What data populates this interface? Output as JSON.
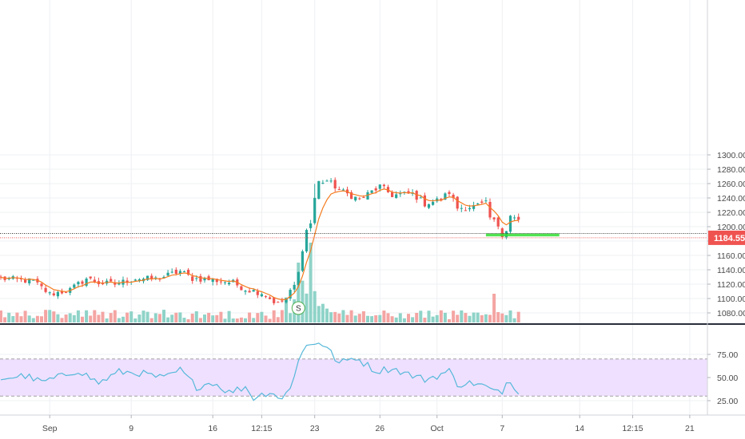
{
  "colors": {
    "up": "#26a69a",
    "down": "#ef5350",
    "vol_up": "#8fd3c8",
    "vol_down": "#f4a5a3",
    "ma": "#f57c1f",
    "rsi": "#56b8d9",
    "rsi_band": "#efe0ff",
    "support_zone": "#33dd33",
    "price_line": "#ef5350",
    "level_line": "#333333",
    "grid": "#eef0f3",
    "axis_text": "#4a4a4a"
  },
  "chart_data": {
    "type": "candlestick",
    "price_axis": {
      "ylim": [
        1065,
        1305
      ],
      "ticks": [
        "1300.00",
        "1280.00",
        "1260.00",
        "1240.00",
        "1220.00",
        "1200.00",
        "1180.00",
        "1160.00",
        "1140.00",
        "1120.00",
        "1100.00",
        "1080.00"
      ],
      "tick_values": [
        1300,
        1280,
        1260,
        1240,
        1220,
        1200,
        1180,
        1160,
        1140,
        1120,
        1100,
        1080
      ]
    },
    "last_price": {
      "label": "1184.55",
      "value": 1184.55
    },
    "horizontal_level": 1190.5,
    "support_zone": {
      "low": 1186.5,
      "high": 1190.5,
      "from_bar": 119,
      "to_bar": 137
    },
    "rsi_axis": {
      "ylim": [
        20,
        95
      ],
      "ticks": [
        "75.00",
        "50.00",
        "25.00"
      ],
      "tick_values": [
        75,
        50,
        25
      ],
      "band": [
        30,
        70
      ]
    },
    "x_axis": {
      "bar_count": 165,
      "labels": [
        {
          "text": "Sep",
          "bar": 12
        },
        {
          "text": "9",
          "bar": 32
        },
        {
          "text": "16",
          "bar": 52
        },
        {
          "text": "12:15",
          "bar": 64
        },
        {
          "text": "23",
          "bar": 77
        },
        {
          "text": "26",
          "bar": 93
        },
        {
          "text": "Oct",
          "bar": 107
        },
        {
          "text": "7",
          "bar": 123
        },
        {
          "text": "14",
          "bar": 142
        },
        {
          "text": "12:15",
          "bar": 155
        },
        {
          "text": "21",
          "bar": 169
        }
      ]
    },
    "marker": {
      "label": "S",
      "bar": 73
    },
    "anchors": [
      [
        0,
        1128
      ],
      [
        8,
        1124
      ],
      [
        12,
        1106
      ],
      [
        17,
        1112
      ],
      [
        21,
        1128
      ],
      [
        24,
        1122
      ],
      [
        28,
        1120
      ],
      [
        33,
        1128
      ],
      [
        38,
        1127
      ],
      [
        44,
        1138
      ],
      [
        47,
        1128
      ],
      [
        52,
        1126
      ],
      [
        57,
        1122
      ],
      [
        60,
        1113
      ],
      [
        64,
        1108
      ],
      [
        68,
        1092
      ],
      [
        70,
        1100
      ],
      [
        72,
        1118
      ],
      [
        73,
        1135
      ],
      [
        74,
        1170
      ],
      [
        75,
        1195
      ],
      [
        76,
        1205
      ],
      [
        77,
        1240
      ],
      [
        78,
        1262
      ],
      [
        80,
        1264
      ],
      [
        84,
        1248
      ],
      [
        88,
        1238
      ],
      [
        93,
        1256
      ],
      [
        96,
        1244
      ],
      [
        101,
        1246
      ],
      [
        104,
        1232
      ],
      [
        108,
        1238
      ],
      [
        110,
        1248
      ],
      [
        112,
        1226
      ],
      [
        116,
        1228
      ],
      [
        119,
        1232
      ],
      [
        120,
        1212
      ],
      [
        122,
        1202
      ],
      [
        123,
        1190
      ],
      [
        124,
        1196
      ],
      [
        125,
        1215
      ],
      [
        127,
        1208
      ]
    ],
    "rsi_anchors": [
      [
        0,
        49
      ],
      [
        6,
        52
      ],
      [
        10,
        45
      ],
      [
        14,
        50
      ],
      [
        19,
        58
      ],
      [
        24,
        44
      ],
      [
        29,
        56
      ],
      [
        34,
        55
      ],
      [
        40,
        49
      ],
      [
        44,
        58
      ],
      [
        48,
        40
      ],
      [
        52,
        45
      ],
      [
        56,
        34
      ],
      [
        60,
        40
      ],
      [
        62,
        28
      ],
      [
        66,
        35
      ],
      [
        69,
        27
      ],
      [
        71,
        38
      ],
      [
        73,
        70
      ],
      [
        75,
        84
      ],
      [
        78,
        89
      ],
      [
        80,
        82
      ],
      [
        83,
        65
      ],
      [
        87,
        72
      ],
      [
        92,
        57
      ],
      [
        96,
        60
      ],
      [
        101,
        52
      ],
      [
        104,
        48
      ],
      [
        107,
        52
      ],
      [
        110,
        57
      ],
      [
        112,
        43
      ],
      [
        116,
        44
      ],
      [
        119,
        40
      ],
      [
        121,
        35
      ],
      [
        123,
        32
      ],
      [
        124,
        48
      ],
      [
        127,
        36
      ]
    ]
  }
}
